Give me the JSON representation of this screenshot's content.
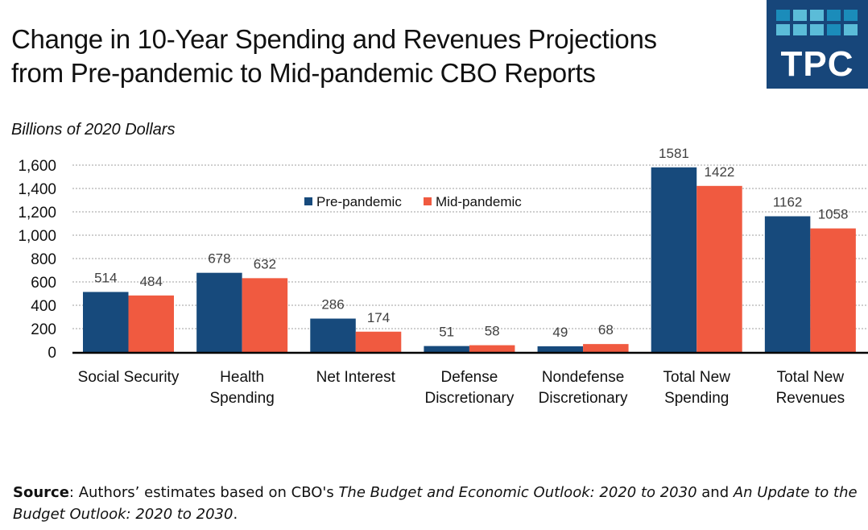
{
  "header": {
    "title_line1": "Change in 10-Year Spending and Revenues Projections",
    "title_line2": "from Pre-pandemic to Mid-pandemic CBO Reports",
    "logo_text": "TPC",
    "logo_colors": {
      "background": "#17467a",
      "tiles": [
        "#1b8cba",
        "#5bbcd8",
        "#5bbcd8",
        "#1b8cba",
        "#1b8cba",
        "#5bbcd8",
        "#5bbcd8",
        "#5bbcd8",
        "#1b8cba",
        "#5bbcd8"
      ]
    }
  },
  "units_label": "Billions of 2020 Dollars",
  "chart_data": {
    "type": "bar",
    "title": "Change in 10-Year Spending and Revenues Projections from Pre-pandemic to Mid-pandemic CBO Reports",
    "ylabel": "Billions of 2020 Dollars",
    "xlabel": "",
    "ylim": [
      0,
      1600
    ],
    "yticks": [
      0,
      200,
      400,
      600,
      800,
      1000,
      1200,
      1400,
      1600
    ],
    "ytick_labels": [
      "0",
      "200",
      "400",
      "600",
      "800",
      "1,000",
      "1,200",
      "1,400",
      "1,600"
    ],
    "grid": true,
    "legend_position": "top-center",
    "categories": [
      [
        "Social Security"
      ],
      [
        "Health",
        "Spending"
      ],
      [
        "Net Interest"
      ],
      [
        "Defense",
        "Discretionary"
      ],
      [
        "Nondefense",
        "Discretionary"
      ],
      [
        "Total New",
        "Spending"
      ],
      [
        "Total New",
        "Revenues"
      ]
    ],
    "series": [
      {
        "name": "Pre-pandemic",
        "color": "#174a7c",
        "values": [
          514,
          678,
          286,
          51,
          49,
          1581,
          1162
        ]
      },
      {
        "name": "Mid-pandemic",
        "color": "#f05a40",
        "values": [
          484,
          632,
          174,
          58,
          68,
          1422,
          1058
        ]
      }
    ]
  },
  "source": {
    "label": "Source",
    "text1": ": Authors’ estimates based on CBO's ",
    "italic1": "The Budget and Economic Outlook: 2020 to 2030",
    "text2": " and ",
    "italic2": "An Update to the Budget Outlook: 2020 to 2030",
    "text3": "."
  }
}
